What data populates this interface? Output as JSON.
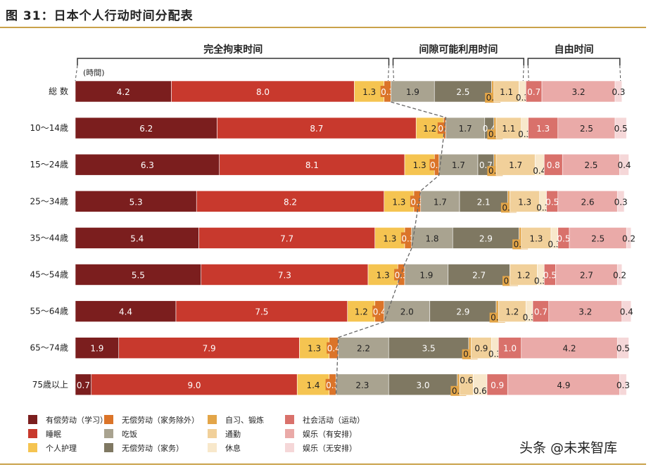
{
  "title": "图 31：日本个人行动时间分配表",
  "watermark": "头条 @未来智库",
  "chart_data": {
    "type": "bar",
    "orientation": "horizontal",
    "stacked": true,
    "unit_label": "(時間)",
    "groups": [
      {
        "label": "完全拘束时间",
        "from_series": 0,
        "to_series": 3
      },
      {
        "label": "间隙可能利用时间",
        "from_series": 4,
        "to_series": 8
      },
      {
        "label": "自由时间",
        "from_series": 9,
        "to_series": 11
      }
    ],
    "categories": [
      "総 数",
      "10～14歳",
      "15～24歳",
      "25～34歳",
      "35～44歳",
      "45～54歳",
      "55～64歳",
      "65～74歳",
      "75歳以上"
    ],
    "series": [
      {
        "name": "有偿劳动（学习）",
        "color": "#7b1e1e",
        "values": [
          4.2,
          6.2,
          6.3,
          5.3,
          5.4,
          5.5,
          4.4,
          1.9,
          0.7
        ]
      },
      {
        "name": "睡眠",
        "color": "#c8392d",
        "values": [
          8.0,
          8.7,
          8.1,
          8.2,
          7.7,
          7.3,
          7.5,
          7.9,
          9.0
        ]
      },
      {
        "name": "个人护理",
        "color": "#f5c451",
        "values": [
          1.3,
          1.2,
          1.3,
          1.3,
          1.3,
          1.3,
          1.2,
          1.3,
          1.4
        ]
      },
      {
        "name": "无偿劳动（家务除外）",
        "color": "#db7429",
        "values": [
          0.3,
          0.1,
          0.2,
          0.3,
          0.3,
          0.3,
          0.4,
          0.4,
          0.3
        ]
      },
      {
        "name": "吃饭",
        "color": "#a9a390",
        "values": [
          1.9,
          1.7,
          1.7,
          1.7,
          1.8,
          1.9,
          2.0,
          2.2,
          2.3
        ]
      },
      {
        "name": "无偿劳动（家务）",
        "color": "#7f7862",
        "values": [
          2.5,
          0.4,
          0.7,
          2.1,
          2.9,
          2.7,
          2.9,
          3.5,
          3.0
        ]
      },
      {
        "name": "自习、锻炼",
        "color": "#e3a548",
        "values": [
          0.1,
          0.1,
          0.1,
          0.1,
          0.1,
          0.0,
          0.1,
          0.1,
          0.1
        ]
      },
      {
        "name": "通勤",
        "color": "#f1d09a",
        "values": [
          1.1,
          1.1,
          1.7,
          1.3,
          1.3,
          1.2,
          1.2,
          0.9,
          0.6
        ]
      },
      {
        "name": "休息",
        "color": "#f8e8cb",
        "values": [
          0.3,
          0.3,
          0.4,
          0.3,
          0.3,
          0.3,
          0.3,
          0.3,
          0.6
        ]
      },
      {
        "name": "社会活动（运动）",
        "color": "#d9716b",
        "values": [
          0.7,
          1.3,
          0.8,
          0.5,
          0.5,
          0.5,
          0.7,
          1.0,
          0.9
        ]
      },
      {
        "name": "娱乐（有安排）",
        "color": "#eaaaa8",
        "values": [
          3.2,
          2.5,
          2.5,
          2.6,
          2.5,
          2.7,
          3.2,
          4.2,
          4.9
        ]
      },
      {
        "name": "娱乐（无安排）",
        "color": "#f5d7d8",
        "values": [
          0.3,
          0.5,
          0.4,
          0.3,
          0.2,
          0.2,
          0.4,
          0.5,
          0.3
        ]
      }
    ],
    "xlim": [
      0,
      24
    ],
    "grid": false,
    "legend": "bottom"
  }
}
